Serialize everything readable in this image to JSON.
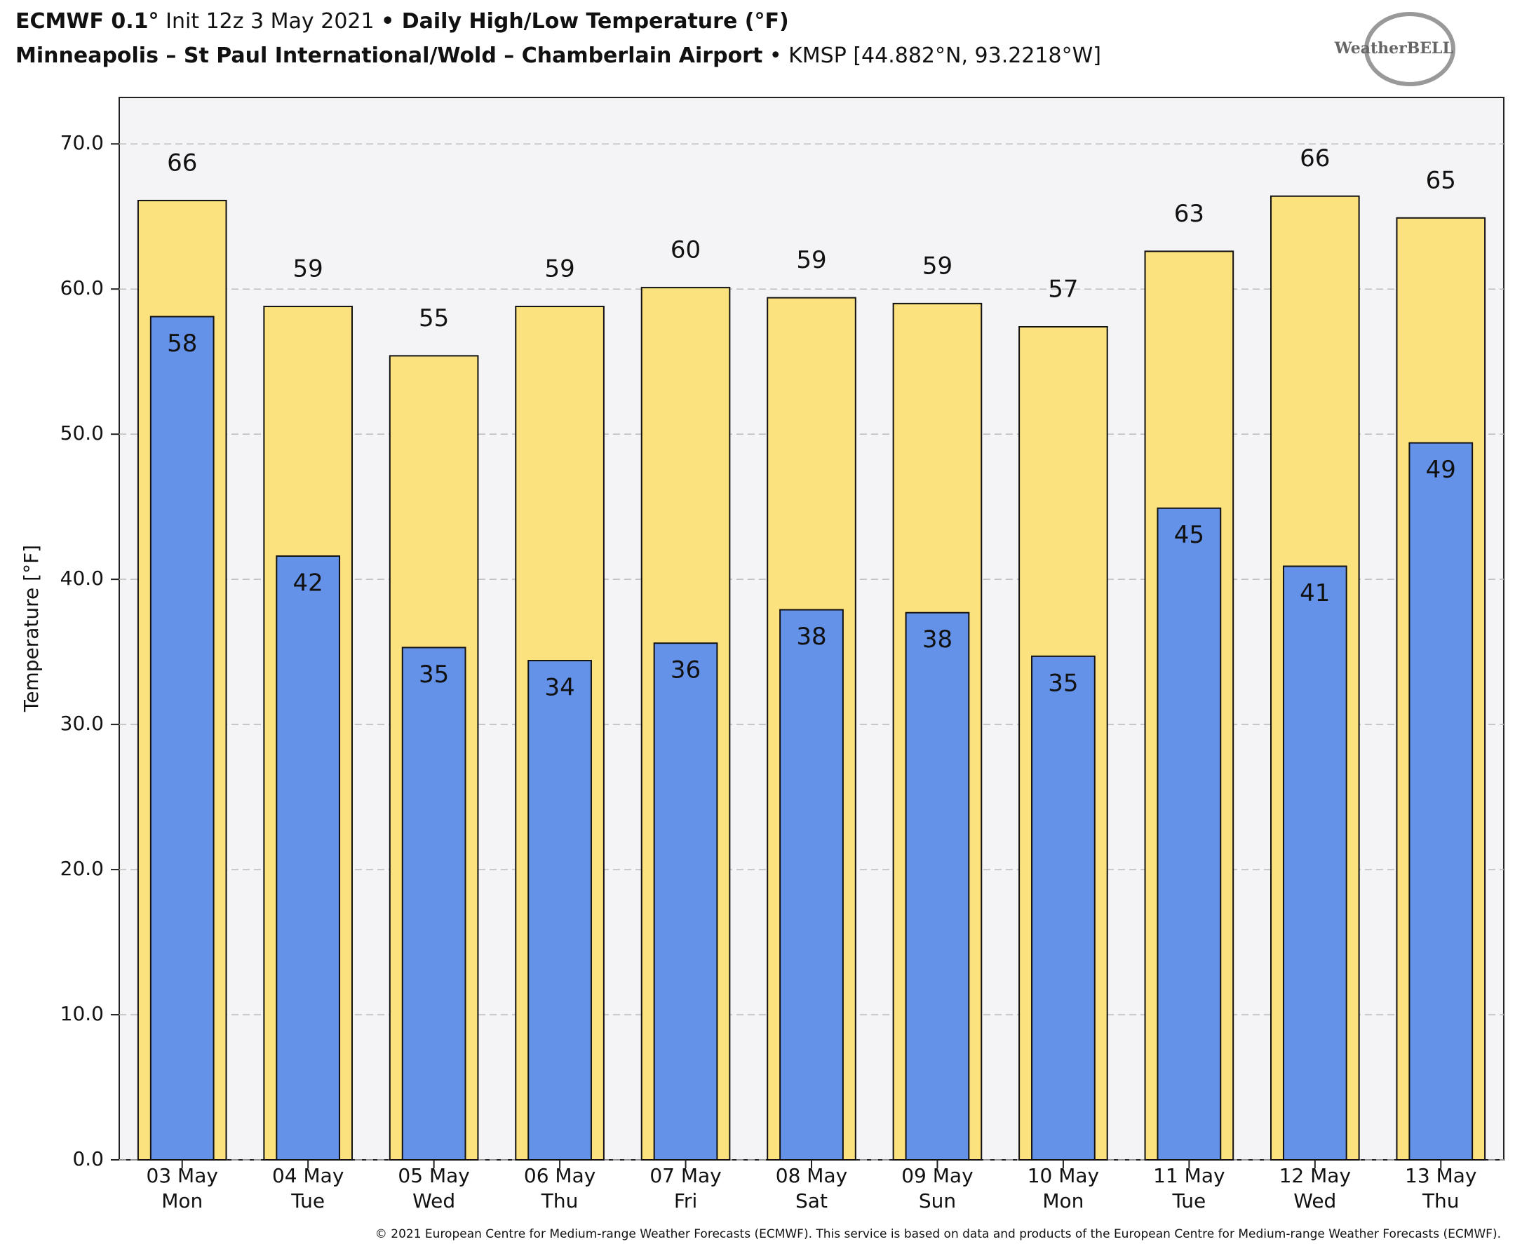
{
  "header": {
    "model": "ECMWF 0.1°",
    "init": "Init 12z 3 May 2021",
    "product": "• Daily High/Low Temperature (°F)",
    "station": "Minneapolis – St Paul International/Wold – Chamberlain Airport",
    "code": "• KMSP [44.882°N, 93.2218°W]",
    "logo": "WeatherBELL"
  },
  "footer": "© 2021 European Centre for Medium-range Weather Forecasts (ECMWF). This service is based on data and products of the European Centre for Medium-range Weather Forecasts (ECMWF).",
  "chart_data": {
    "type": "bar",
    "overlap": true,
    "y_label": "Temperature [°F]",
    "categories": [
      "03 May",
      "04 May",
      "05 May",
      "06 May",
      "07 May",
      "08 May",
      "09 May",
      "10 May",
      "11 May",
      "12 May",
      "13 May"
    ],
    "weekdays": [
      "Mon",
      "Tue",
      "Wed",
      "Thu",
      "Fri",
      "Sat",
      "Sun",
      "Mon",
      "Tue",
      "Wed",
      "Thu"
    ],
    "series": [
      {
        "name": "High",
        "color": "#fbe27f",
        "width": 0.7,
        "label_pos": "above",
        "values": [
          66.1,
          58.8,
          55.4,
          58.8,
          60.1,
          59.4,
          59.0,
          57.4,
          62.6,
          66.4,
          64.9
        ],
        "value_labels": [
          "66",
          "59",
          "55",
          "59",
          "60",
          "59",
          "59",
          "57",
          "63",
          "66",
          "65"
        ]
      },
      {
        "name": "Low",
        "color": "#6592e9",
        "width": 0.5,
        "label_pos": "inside",
        "values": [
          58.1,
          41.6,
          35.3,
          34.4,
          35.6,
          37.9,
          37.7,
          34.7,
          44.9,
          40.9,
          49.4
        ],
        "value_labels": [
          "58",
          "42",
          "35",
          "34",
          "36",
          "38",
          "38",
          "35",
          "45",
          "41",
          "49"
        ]
      }
    ],
    "ylim": [
      0,
      73.2
    ],
    "yticks": [
      {
        "value": 0,
        "label": "0.0"
      },
      {
        "value": 10,
        "label": "10.0"
      },
      {
        "value": 20,
        "label": "20.0"
      },
      {
        "value": 30,
        "label": "30.0"
      },
      {
        "value": 40,
        "label": "40.0"
      },
      {
        "value": 50,
        "label": "50.0"
      },
      {
        "value": 60,
        "label": "60.0"
      },
      {
        "value": 70,
        "label": "70.0"
      }
    ],
    "grid": true
  }
}
